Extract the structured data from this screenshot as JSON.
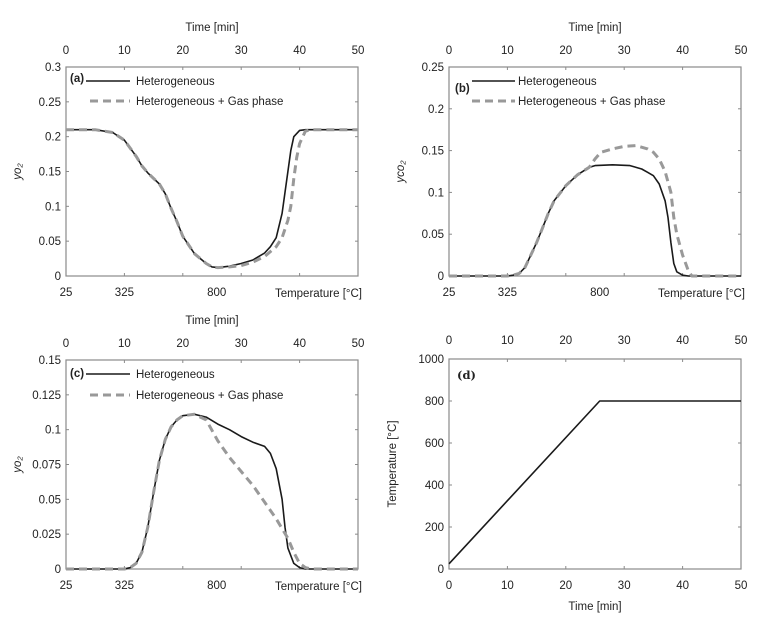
{
  "chart_data": [
    {
      "type": "line",
      "panel_label": "(a)",
      "top_xlabel": "Time [min]",
      "xlim": [
        0,
        50
      ],
      "top_xticks": [
        0,
        10,
        20,
        30,
        40,
        50
      ],
      "bottom_xlabel": "Temperature [°C]",
      "bottom_xticks": [
        {
          "label": "25",
          "time": 0
        },
        {
          "label": "325",
          "time": 10
        },
        {
          "label": "800",
          "time": 25.8
        }
      ],
      "ylabel": "yo₂",
      "ylim": [
        0,
        0.3
      ],
      "yticks": [
        "0",
        "0.05",
        "0.1",
        "0.15",
        "0.2",
        "0.25",
        "0.3"
      ],
      "series": [
        {
          "name": "Heterogeneous",
          "style": "solid",
          "color": "#1a1a1a",
          "points": [
            [
              0,
              0.21
            ],
            [
              5,
              0.21
            ],
            [
              8,
              0.206
            ],
            [
              10,
              0.195
            ],
            [
              12,
              0.172
            ],
            [
              13,
              0.158
            ],
            [
              14,
              0.148
            ],
            [
              16,
              0.132
            ],
            [
              17,
              0.118
            ],
            [
              18,
              0.097
            ],
            [
              19,
              0.078
            ],
            [
              20,
              0.057
            ],
            [
              22,
              0.032
            ],
            [
              24,
              0.018
            ],
            [
              25,
              0.013
            ],
            [
              26,
              0.012
            ],
            [
              28,
              0.014
            ],
            [
              30,
              0.018
            ],
            [
              32,
              0.023
            ],
            [
              34,
              0.033
            ],
            [
              35,
              0.042
            ],
            [
              36,
              0.055
            ],
            [
              37,
              0.09
            ],
            [
              37.5,
              0.12
            ],
            [
              38,
              0.15
            ],
            [
              38.5,
              0.18
            ],
            [
              39,
              0.2
            ],
            [
              40,
              0.209
            ],
            [
              41,
              0.21
            ],
            [
              50,
              0.21
            ]
          ]
        },
        {
          "name": "Heterogeneous + Gas phase",
          "style": "dashed",
          "color": "#999999",
          "points": [
            [
              0,
              0.21
            ],
            [
              5,
              0.21
            ],
            [
              8,
              0.206
            ],
            [
              10,
              0.195
            ],
            [
              12,
              0.172
            ],
            [
              13,
              0.158
            ],
            [
              14,
              0.148
            ],
            [
              16,
              0.132
            ],
            [
              17,
              0.118
            ],
            [
              18,
              0.097
            ],
            [
              19,
              0.078
            ],
            [
              20,
              0.057
            ],
            [
              22,
              0.032
            ],
            [
              24,
              0.018
            ],
            [
              25,
              0.013
            ],
            [
              26,
              0.012
            ],
            [
              28,
              0.013
            ],
            [
              30,
              0.015
            ],
            [
              32,
              0.02
            ],
            [
              34,
              0.028
            ],
            [
              35,
              0.035
            ],
            [
              36,
              0.042
            ],
            [
              37,
              0.055
            ],
            [
              38,
              0.08
            ],
            [
              38.5,
              0.1
            ],
            [
              39,
              0.14
            ],
            [
              39.5,
              0.17
            ],
            [
              40,
              0.19
            ],
            [
              41,
              0.208
            ],
            [
              42,
              0.21
            ],
            [
              50,
              0.21
            ]
          ]
        }
      ]
    },
    {
      "type": "line",
      "panel_label": "(b)",
      "top_xlabel": "Time [min]",
      "xlim": [
        0,
        50
      ],
      "top_xticks": [
        0,
        10,
        20,
        30,
        40,
        50
      ],
      "bottom_xlabel": "Temperature [°C]",
      "bottom_xticks": [
        {
          "label": "25",
          "time": 0
        },
        {
          "label": "325",
          "time": 10
        },
        {
          "label": "800",
          "time": 25.8
        }
      ],
      "ylabel": "yco₂",
      "ylim": [
        0,
        0.25
      ],
      "yticks": [
        "0",
        "0.05",
        "0.1",
        "0.15",
        "0.2",
        "0.25"
      ],
      "series": [
        {
          "name": "Heterogeneous",
          "style": "solid",
          "color": "#1a1a1a",
          "points": [
            [
              0,
              0
            ],
            [
              10,
              0
            ],
            [
              11,
              0.001
            ],
            [
              12,
              0.003
            ],
            [
              13,
              0.01
            ],
            [
              14,
              0.025
            ],
            [
              15,
              0.04
            ],
            [
              16,
              0.057
            ],
            [
              17,
              0.075
            ],
            [
              18,
              0.09
            ],
            [
              20,
              0.108
            ],
            [
              22,
              0.121
            ],
            [
              24,
              0.13
            ],
            [
              25,
              0.132
            ],
            [
              28,
              0.133
            ],
            [
              31,
              0.132
            ],
            [
              33,
              0.128
            ],
            [
              34,
              0.124
            ],
            [
              35,
              0.12
            ],
            [
              36,
              0.11
            ],
            [
              37,
              0.09
            ],
            [
              37.5,
              0.07
            ],
            [
              38,
              0.04
            ],
            [
              38.5,
              0.015
            ],
            [
              39,
              0.005
            ],
            [
              40,
              0.001
            ],
            [
              41,
              0
            ],
            [
              50,
              0
            ]
          ]
        },
        {
          "name": "Heterogeneous + Gas phase",
          "style": "dashed",
          "color": "#999999",
          "points": [
            [
              0,
              0
            ],
            [
              10,
              0
            ],
            [
              11,
              0.001
            ],
            [
              12,
              0.003
            ],
            [
              13,
              0.01
            ],
            [
              14,
              0.025
            ],
            [
              15,
              0.04
            ],
            [
              16,
              0.057
            ],
            [
              17,
              0.075
            ],
            [
              18,
              0.09
            ],
            [
              20,
              0.108
            ],
            [
              22,
              0.121
            ],
            [
              24,
              0.13
            ],
            [
              25,
              0.14
            ],
            [
              26,
              0.148
            ],
            [
              28,
              0.152
            ],
            [
              30,
              0.155
            ],
            [
              32,
              0.156
            ],
            [
              34,
              0.152
            ],
            [
              35,
              0.148
            ],
            [
              36,
              0.14
            ],
            [
              37,
              0.125
            ],
            [
              38,
              0.1
            ],
            [
              38.5,
              0.07
            ],
            [
              39,
              0.05
            ],
            [
              40,
              0.025
            ],
            [
              41,
              0.006
            ],
            [
              41.6,
              0
            ],
            [
              50,
              0
            ]
          ]
        }
      ]
    },
    {
      "type": "line",
      "panel_label": "(c)",
      "top_xlabel": "Time [min]",
      "xlim": [
        0,
        50
      ],
      "top_xticks": [
        0,
        10,
        20,
        30,
        40,
        50
      ],
      "bottom_xlabel": "Temperature [°C]",
      "bottom_xticks": [
        {
          "label": "25",
          "time": 0
        },
        {
          "label": "325",
          "time": 10
        },
        {
          "label": "800",
          "time": 25.8
        }
      ],
      "ylabel": "yo₂",
      "ylim": [
        0,
        0.15
      ],
      "yticks": [
        "0",
        "0.025",
        "0.05",
        "0.075",
        "0.1",
        "0.125",
        "0.15"
      ],
      "series": [
        {
          "name": "Heterogeneous",
          "style": "solid",
          "color": "#1a1a1a",
          "points": [
            [
              0,
              0
            ],
            [
              10,
              0
            ],
            [
              11,
              0.001
            ],
            [
              12,
              0.004
            ],
            [
              13,
              0.012
            ],
            [
              14,
              0.03
            ],
            [
              15,
              0.055
            ],
            [
              16,
              0.078
            ],
            [
              17,
              0.093
            ],
            [
              18,
              0.102
            ],
            [
              19,
              0.107
            ],
            [
              20,
              0.11
            ],
            [
              22,
              0.111
            ],
            [
              24,
              0.109
            ],
            [
              26,
              0.104
            ],
            [
              28,
              0.1
            ],
            [
              30,
              0.095
            ],
            [
              32,
              0.091
            ],
            [
              34,
              0.088
            ],
            [
              35,
              0.083
            ],
            [
              36,
              0.072
            ],
            [
              37,
              0.05
            ],
            [
              37.5,
              0.03
            ],
            [
              38,
              0.015
            ],
            [
              39,
              0.004
            ],
            [
              40,
              0.001
            ],
            [
              41,
              0
            ],
            [
              50,
              0
            ]
          ]
        },
        {
          "name": "Heterogeneous + Gas phase",
          "style": "dashed",
          "color": "#999999",
          "points": [
            [
              0,
              0
            ],
            [
              10,
              0
            ],
            [
              11,
              0.001
            ],
            [
              12,
              0.004
            ],
            [
              13,
              0.012
            ],
            [
              14,
              0.03
            ],
            [
              15,
              0.055
            ],
            [
              16,
              0.078
            ],
            [
              17,
              0.093
            ],
            [
              18,
              0.102
            ],
            [
              19,
              0.107
            ],
            [
              20,
              0.11
            ],
            [
              22,
              0.111
            ],
            [
              24,
              0.107
            ],
            [
              26,
              0.092
            ],
            [
              28,
              0.08
            ],
            [
              30,
              0.07
            ],
            [
              32,
              0.06
            ],
            [
              34,
              0.048
            ],
            [
              36,
              0.036
            ],
            [
              38,
              0.022
            ],
            [
              39,
              0.012
            ],
            [
              40,
              0.004
            ],
            [
              41,
              0.001
            ],
            [
              42,
              0
            ],
            [
              50,
              0
            ]
          ]
        }
      ]
    },
    {
      "type": "line",
      "panel_label": "(d)",
      "xlabel": "Time [min]",
      "xlim": [
        0,
        50
      ],
      "xticks": [
        0,
        10,
        20,
        30,
        40,
        50
      ],
      "ylabel": "Temperature [°C]",
      "ylim": [
        0,
        1000
      ],
      "yticks": [
        "0",
        "200",
        "400",
        "600",
        "800",
        "1000"
      ],
      "series": [
        {
          "style": "solid",
          "color": "#1a1a1a",
          "points": [
            [
              0,
              25
            ],
            [
              25.8,
              800
            ],
            [
              50,
              800
            ]
          ]
        }
      ]
    }
  ]
}
